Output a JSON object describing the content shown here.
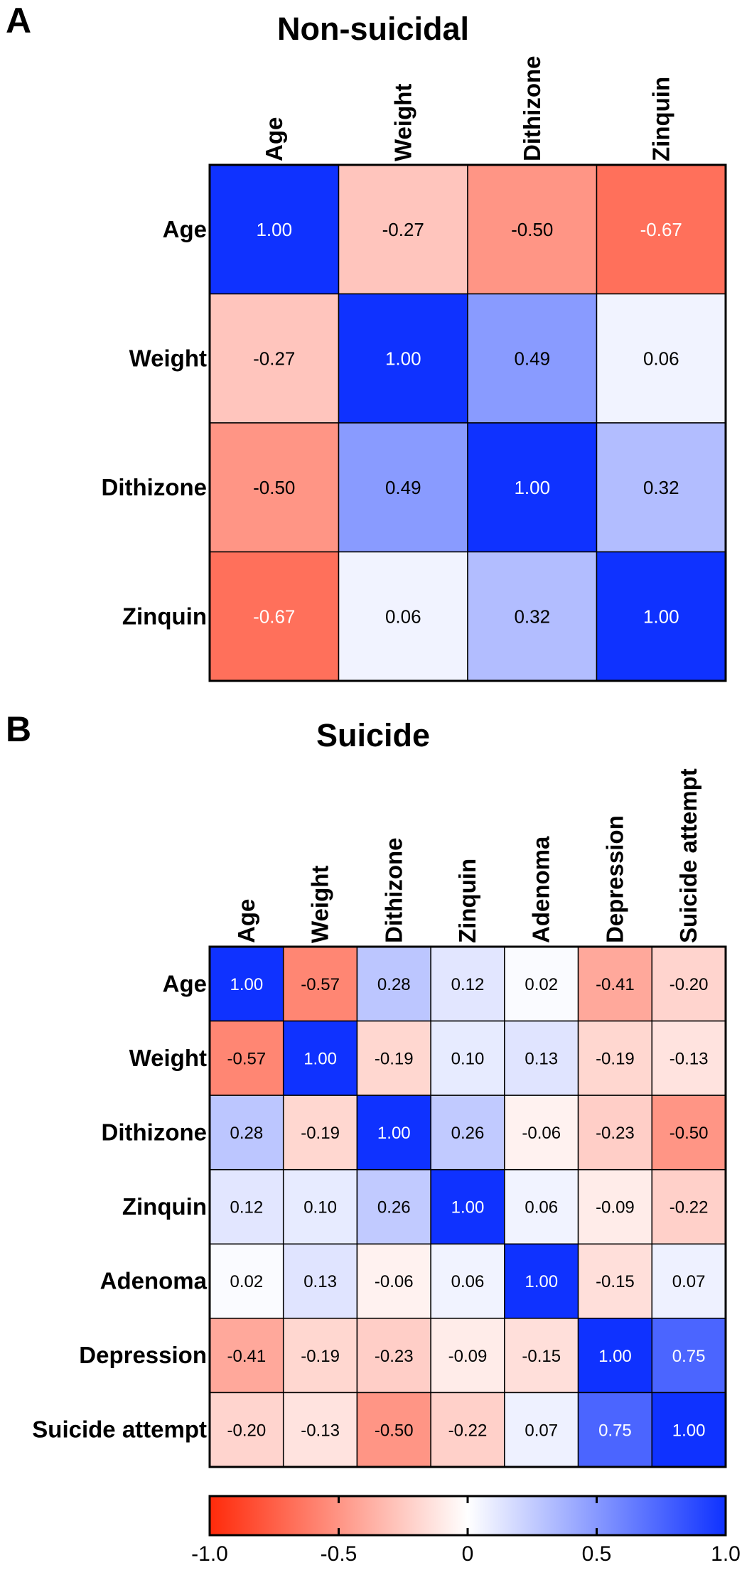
{
  "panels": [
    {
      "letter": "A",
      "title": "Non-suicidal",
      "labels": [
        "Age",
        "Weight",
        "Dithizone",
        "Zinquin"
      ]
    },
    {
      "letter": "B",
      "title": "Suicide",
      "labels": [
        "Age",
        "Weight",
        "Dithizone",
        "Zinquin",
        "Adenoma",
        "Depression",
        "Suicide attempt"
      ]
    }
  ],
  "colorbar": {
    "ticks": [
      "-1.0",
      "-0.5",
      "0",
      "0.5",
      "1.0"
    ],
    "tick_values": [
      -1.0,
      -0.5,
      0,
      0.5,
      1.0
    ],
    "range": [
      -1,
      1
    ],
    "colors": {
      "negative": "#ff2a0a",
      "zero": "#ffffff",
      "positive": "#0f32ff"
    }
  },
  "chart_data": [
    {
      "type": "heatmap",
      "title": "Non-suicidal",
      "rows": [
        "Age",
        "Weight",
        "Dithizone",
        "Zinquin"
      ],
      "columns": [
        "Age",
        "Weight",
        "Dithizone",
        "Zinquin"
      ],
      "values": [
        [
          1.0,
          -0.27,
          -0.5,
          -0.67
        ],
        [
          -0.27,
          1.0,
          0.49,
          0.06
        ],
        [
          -0.5,
          0.49,
          1.0,
          0.32
        ],
        [
          -0.67,
          0.06,
          0.32,
          1.0
        ]
      ],
      "value_labels": [
        [
          "1.00",
          "-0.27",
          "-0.50",
          "-0.67"
        ],
        [
          "-0.27",
          "1.00",
          "0.49",
          "0.06"
        ],
        [
          "-0.50",
          "0.49",
          "1.00",
          "0.32"
        ],
        [
          "-0.67",
          "0.06",
          "0.32",
          "1.00"
        ]
      ],
      "color_range": [
        -1,
        1
      ]
    },
    {
      "type": "heatmap",
      "title": "Suicide",
      "rows": [
        "Age",
        "Weight",
        "Dithizone",
        "Zinquin",
        "Adenoma",
        "Depression",
        "Suicide attempt"
      ],
      "columns": [
        "Age",
        "Weight",
        "Dithizone",
        "Zinquin",
        "Adenoma",
        "Depression",
        "Suicide attempt"
      ],
      "values": [
        [
          1.0,
          -0.57,
          0.28,
          0.12,
          0.02,
          -0.41,
          -0.2
        ],
        [
          -0.57,
          1.0,
          -0.19,
          0.1,
          0.13,
          -0.19,
          -0.13
        ],
        [
          0.28,
          -0.19,
          1.0,
          0.26,
          -0.06,
          -0.23,
          -0.5
        ],
        [
          0.12,
          0.1,
          0.26,
          1.0,
          0.06,
          -0.09,
          -0.22
        ],
        [
          0.02,
          0.13,
          -0.06,
          0.06,
          1.0,
          -0.15,
          0.07
        ],
        [
          -0.41,
          -0.19,
          -0.23,
          -0.09,
          -0.15,
          1.0,
          0.75
        ],
        [
          -0.2,
          -0.13,
          -0.5,
          -0.22,
          0.07,
          0.75,
          1.0
        ]
      ],
      "value_labels": [
        [
          "1.00",
          "-0.57",
          "0.28",
          "0.12",
          "0.02",
          "-0.41",
          "-0.20"
        ],
        [
          "-0.57",
          "1.00",
          "-0.19",
          "0.10",
          "0.13",
          "-0.19",
          "-0.13"
        ],
        [
          "0.28",
          "-0.19",
          "1.00",
          "0.26",
          "-0.06",
          "-0.23",
          "-0.50"
        ],
        [
          "0.12",
          "0.10",
          "0.26",
          "1.00",
          "0.06",
          "-0.09",
          "-0.22"
        ],
        [
          "0.02",
          "0.13",
          "-0.06",
          "0.06",
          "1.00",
          "-0.15",
          "0.07"
        ],
        [
          "-0.41",
          "-0.19",
          "-0.23",
          "-0.09",
          "-0.15",
          "1.00",
          "0.75"
        ],
        [
          "-0.20",
          "-0.13",
          "-0.50",
          "-0.22",
          "0.07",
          "0.75",
          "1.00"
        ]
      ],
      "color_range": [
        -1,
        1
      ]
    }
  ]
}
